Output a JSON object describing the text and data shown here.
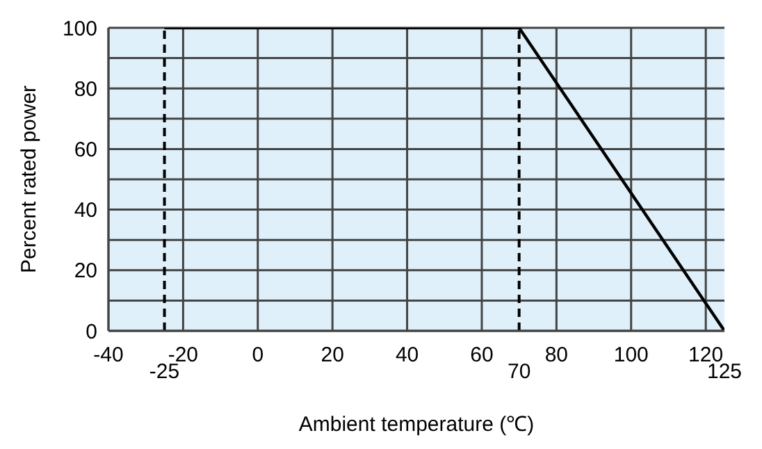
{
  "chart_data": {
    "type": "line",
    "xlabel": "Ambient temperature (℃)",
    "ylabel": "Percent rated power",
    "series": [
      {
        "x": [
          -25,
          70,
          125
        ],
        "values": [
          100,
          100,
          0
        ],
        "color": "#000000"
      }
    ],
    "xlim": [
      -40,
      125
    ],
    "xticks": [
      -40,
      -20,
      0,
      20,
      40,
      60,
      80,
      100,
      120
    ],
    "annotations": [
      {
        "text": "125",
        "x": 125,
        "y": 0
      }
    ],
    "ylim": [
      0,
      100
    ],
    "yticks": [
      0,
      {
        "value": 10,
        "label": null
      },
      20,
      {
        "value": 30,
        "label": null
      },
      40,
      {
        "value": 50,
        "label": null
      },
      60,
      {
        "value": 70,
        "label": null
      },
      80,
      {
        "value": 90,
        "label": null
      },
      100
    ],
    "ref_lines": [
      {
        "axis": "x",
        "value": -25,
        "label": "-25",
        "color": "#000000",
        "line_style": "dashed"
      },
      {
        "axis": "x",
        "value": 70,
        "label": "70",
        "color": "#000000",
        "line_style": "dashed"
      }
    ],
    "grid": true,
    "marker": "none",
    "line_style": "solid"
  }
}
